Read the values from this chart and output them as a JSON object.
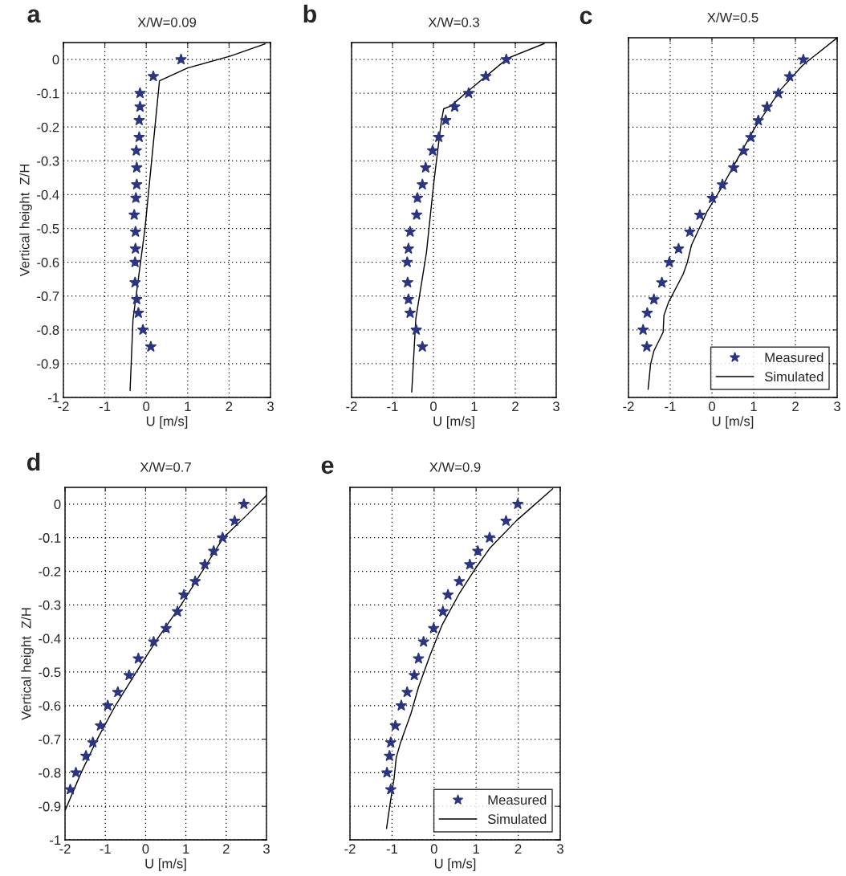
{
  "chart_data": [
    {
      "type": "line",
      "title": "X/W=0.09",
      "xlabel": "U [m/s]",
      "ylabel": "Vertical height  Z/H",
      "annotations": [
        "a"
      ],
      "xlim": [
        -2,
        3
      ],
      "ylim": [
        -1,
        0.05
      ],
      "xticks": [
        -2,
        -1,
        0,
        1,
        2,
        3
      ],
      "yticks": [
        -1,
        -0.9,
        -0.8,
        -0.7,
        -0.6,
        -0.5,
        -0.4,
        -0.3,
        -0.2,
        -0.1,
        0
      ],
      "grid": true,
      "legend": false,
      "series": [
        {
          "type": "scatter",
          "color": "#2b3580",
          "marker": "star",
          "x": [
            0.84,
            0.17,
            -0.15,
            -0.15,
            -0.17,
            -0.17,
            -0.24,
            -0.23,
            -0.23,
            -0.25,
            -0.29,
            -0.26,
            -0.26,
            -0.27,
            -0.27,
            -0.23,
            -0.19,
            -0.08,
            0.11
          ],
          "values": [
            0,
            -0.05,
            -0.1,
            -0.14,
            -0.18,
            -0.23,
            -0.27,
            -0.32,
            -0.37,
            -0.41,
            -0.46,
            -0.51,
            -0.56,
            -0.6,
            -0.66,
            -0.71,
            -0.75,
            -0.8,
            -0.85
          ]
        },
        {
          "color": "#000000",
          "marker": "none",
          "line_style": "solid",
          "x": [
            2.87,
            2.03,
            1.0,
            0.32,
            0.29,
            -0.03,
            -0.32,
            -0.39
          ],
          "values": [
            0.046,
            0.01,
            -0.025,
            -0.063,
            -0.1,
            -0.5,
            -0.77,
            -0.98
          ]
        }
      ]
    },
    {
      "type": "line",
      "title": "X/W=0.3",
      "xlabel": "U [m/s]",
      "annotations": [
        "b"
      ],
      "xlim": [
        -2,
        3
      ],
      "ylim": [
        -1,
        0.05
      ],
      "xticks": [
        -2,
        -1,
        0,
        1,
        2,
        3
      ],
      "yticks": [
        -1,
        -0.9,
        -0.8,
        -0.7,
        -0.6,
        -0.5,
        -0.4,
        -0.3,
        -0.2,
        -0.1,
        0
      ],
      "tick_labels": "x",
      "grid": true,
      "legend": false,
      "series": [
        {
          "type": "scatter",
          "color": "#2b3580",
          "marker": "star",
          "x": [
            1.78,
            1.28,
            0.86,
            0.52,
            0.3,
            0.13,
            -0.02,
            -0.19,
            -0.27,
            -0.39,
            -0.41,
            -0.57,
            -0.61,
            -0.64,
            -0.63,
            -0.61,
            -0.57,
            -0.42,
            -0.27
          ],
          "values": [
            0,
            -0.05,
            -0.1,
            -0.14,
            -0.18,
            -0.23,
            -0.27,
            -0.32,
            -0.37,
            -0.41,
            -0.46,
            -0.51,
            -0.56,
            -0.6,
            -0.66,
            -0.71,
            -0.75,
            -0.8,
            -0.85
          ]
        },
        {
          "color": "#000000",
          "marker": "none",
          "line_style": "solid",
          "x": [
            2.71,
            1.82,
            0.88,
            0.42,
            0.25,
            0.19,
            0.0,
            -0.17,
            -0.43,
            -0.53
          ],
          "values": [
            0.047,
            0.004,
            -0.09,
            -0.138,
            -0.146,
            -0.185,
            -0.374,
            -0.571,
            -0.767,
            -0.984
          ]
        }
      ]
    },
    {
      "type": "line",
      "title": "X/W=0.5",
      "xlabel": "U [m/s]",
      "annotations": [
        "c"
      ],
      "xlim": [
        -2,
        3
      ],
      "ylim": [
        -1,
        0.065
      ],
      "xticks": [
        -2,
        -1,
        0,
        1,
        2,
        3
      ],
      "yticks": [
        -1,
        -0.9,
        -0.8,
        -0.7,
        -0.6,
        -0.5,
        -0.4,
        -0.3,
        -0.2,
        -0.1,
        0
      ],
      "tick_labels": "x",
      "grid": true,
      "legend": "bottom right",
      "series": [
        {
          "type": "scatter",
          "name": "Measured",
          "color": "#2b3580",
          "marker": "star",
          "x": [
            2.19,
            1.86,
            1.59,
            1.32,
            1.11,
            0.93,
            0.76,
            0.52,
            0.25,
            0.01,
            -0.29,
            -0.53,
            -0.8,
            -1.02,
            -1.2,
            -1.39,
            -1.55,
            -1.65,
            -1.56
          ],
          "values": [
            0,
            -0.05,
            -0.1,
            -0.14,
            -0.18,
            -0.23,
            -0.27,
            -0.32,
            -0.37,
            -0.41,
            -0.46,
            -0.51,
            -0.56,
            -0.6,
            -0.66,
            -0.71,
            -0.75,
            -0.8,
            -0.85
          ]
        },
        {
          "name": "Simulated",
          "color": "#000000",
          "marker": "none",
          "line_style": "solid",
          "x": [
            3.0,
            2.17,
            1.65,
            1.01,
            0.24,
            -0.11,
            -0.49,
            -0.59,
            -0.69,
            -1.04,
            -1.15,
            -1.17,
            -1.39,
            -1.47,
            -1.53
          ],
          "values": [
            0.065,
            -0.017,
            -0.088,
            -0.205,
            -0.377,
            -0.448,
            -0.549,
            -0.6,
            -0.635,
            -0.718,
            -0.757,
            -0.807,
            -0.862,
            -0.901,
            -0.976
          ]
        }
      ]
    },
    {
      "type": "line",
      "title": "X/W=0.7",
      "xlabel": "U [m/s]",
      "ylabel": "Vertical height  Z/H",
      "annotations": [
        "d"
      ],
      "xlim": [
        -2,
        3
      ],
      "ylim": [
        -1,
        0.05
      ],
      "xticks": [
        -2,
        -1,
        0,
        1,
        2,
        3
      ],
      "yticks": [
        -1,
        -0.9,
        -0.8,
        -0.7,
        -0.6,
        -0.5,
        -0.4,
        -0.3,
        -0.2,
        -0.1,
        0
      ],
      "grid": true,
      "legend": false,
      "series": [
        {
          "type": "scatter",
          "color": "#2b3580",
          "marker": "star",
          "x": [
            2.44,
            2.21,
            1.91,
            1.69,
            1.47,
            1.23,
            0.95,
            0.79,
            0.51,
            0.2,
            -0.18,
            -0.41,
            -0.69,
            -0.94,
            -1.12,
            -1.31,
            -1.48,
            -1.73,
            -1.87
          ],
          "values": [
            0,
            -0.05,
            -0.1,
            -0.14,
            -0.18,
            -0.23,
            -0.27,
            -0.32,
            -0.37,
            -0.41,
            -0.46,
            -0.51,
            -0.56,
            -0.6,
            -0.66,
            -0.71,
            -0.75,
            -0.8,
            -0.85
          ]
        },
        {
          "color": "#000000",
          "marker": "none",
          "line_style": "solid",
          "x": [
            3.0,
            2.45,
            1.93,
            1.3,
            0.88,
            0.3,
            -0.23,
            -0.75,
            -1.2,
            -1.6,
            -1.99
          ],
          "values": [
            0.026,
            -0.04,
            -0.1,
            -0.22,
            -0.3,
            -0.4,
            -0.5,
            -0.6,
            -0.7,
            -0.8,
            -0.91
          ]
        }
      ]
    },
    {
      "type": "line",
      "title": "X/W=0.9",
      "xlabel": "U [m/s]",
      "annotations": [
        "e"
      ],
      "xlim": [
        -2,
        3
      ],
      "ylim": [
        -1,
        0.05
      ],
      "xticks": [
        -2,
        -1,
        0,
        1,
        2,
        3
      ],
      "yticks": [
        -1,
        -0.9,
        -0.8,
        -0.7,
        -0.6,
        -0.5,
        -0.4,
        -0.3,
        -0.2,
        -0.1,
        0
      ],
      "tick_labels": "x",
      "grid": true,
      "legend": "bottom right",
      "series": [
        {
          "type": "scatter",
          "name": "Measured",
          "color": "#2b3580",
          "marker": "star",
          "x": [
            1.99,
            1.71,
            1.32,
            1.04,
            0.85,
            0.6,
            0.33,
            0.21,
            -0.01,
            -0.25,
            -0.37,
            -0.47,
            -0.64,
            -0.78,
            -0.92,
            -1.03,
            -1.06,
            -1.12,
            -1.03
          ],
          "values": [
            0,
            -0.05,
            -0.1,
            -0.14,
            -0.18,
            -0.23,
            -0.27,
            -0.32,
            -0.37,
            -0.41,
            -0.46,
            -0.51,
            -0.56,
            -0.6,
            -0.66,
            -0.71,
            -0.75,
            -0.8,
            -0.85
          ]
        },
        {
          "name": "Simulated",
          "color": "#000000",
          "marker": "none",
          "line_style": "solid",
          "x": [
            2.82,
            1.96,
            1.32,
            0.97,
            0.61,
            0.19,
            -0.09,
            -0.37,
            -0.55,
            -0.8,
            -0.9,
            -0.95,
            -1.05,
            -1.13
          ],
          "values": [
            0.046,
            -0.049,
            -0.132,
            -0.194,
            -0.264,
            -0.36,
            -0.448,
            -0.545,
            -0.624,
            -0.711,
            -0.755,
            -0.816,
            -0.896,
            -0.966
          ]
        }
      ]
    }
  ]
}
